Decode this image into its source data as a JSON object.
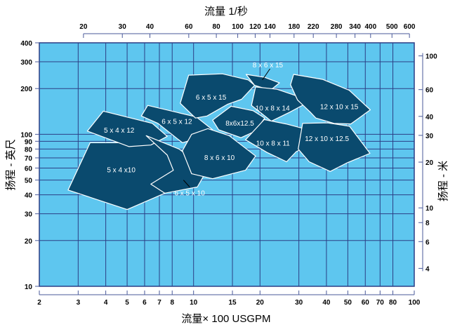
{
  "chart_data": {
    "type": "area",
    "title": "",
    "colors": {
      "plot_background": "#5ec6ef",
      "grid": "#2c3f86",
      "zone_fill": "#0a4a6e",
      "zone_stroke": "#ffffff",
      "axis": "#4a5a9a"
    },
    "x_axis": {
      "label": "流量× 100 USGPM",
      "scale": "log",
      "range": [
        2,
        100
      ],
      "ticks": [
        {
          "value": 2,
          "label": "2"
        },
        {
          "value": 3,
          "label": "3"
        },
        {
          "value": 4,
          "label": "4"
        },
        {
          "value": 5,
          "label": "5"
        },
        {
          "value": 6,
          "label": "6"
        },
        {
          "value": 7,
          "label": "7"
        },
        {
          "value": 8,
          "label": "8"
        },
        {
          "value": 10,
          "label": "10"
        },
        {
          "value": 15,
          "label": "15"
        },
        {
          "value": 20,
          "label": "20"
        },
        {
          "value": 30,
          "label": "30"
        },
        {
          "value": 40,
          "label": "40"
        },
        {
          "value": 50,
          "label": "50"
        },
        {
          "value": 60,
          "label": "60"
        },
        {
          "value": 70,
          "label": "70"
        },
        {
          "value": 80,
          "label": "80"
        },
        {
          "value": 100,
          "label": "100"
        }
      ]
    },
    "x2_axis": {
      "label": "流量 1/秒",
      "scale": "log",
      "ticks": [
        {
          "value": 20,
          "label": "20"
        },
        {
          "value": 30,
          "label": "30"
        },
        {
          "value": 40,
          "label": "40"
        },
        {
          "value": 60,
          "label": "60"
        },
        {
          "value": 80,
          "label": "80"
        },
        {
          "value": 100,
          "label": "100"
        },
        {
          "value": 120,
          "label": "120"
        },
        {
          "value": 140,
          "label": "140"
        },
        {
          "value": 180,
          "label": "180"
        },
        {
          "value": 220,
          "label": "220"
        },
        {
          "value": 280,
          "label": "280"
        },
        {
          "value": 340,
          "label": "340"
        },
        {
          "value": 400,
          "label": "400"
        },
        {
          "value": 500,
          "label": "500"
        },
        {
          "value": 600,
          "label": "600"
        }
      ]
    },
    "y_axis": {
      "label": "扬程 - 英尺",
      "scale": "log",
      "range": [
        10,
        400
      ],
      "ticks": [
        {
          "value": 10,
          "label": "10"
        },
        {
          "value": 20,
          "label": "20"
        },
        {
          "value": 30,
          "label": "30"
        },
        {
          "value": 40,
          "label": "40"
        },
        {
          "value": 50,
          "label": "50"
        },
        {
          "value": 60,
          "label": "60"
        },
        {
          "value": 70,
          "label": "70"
        },
        {
          "value": 80,
          "label": "80"
        },
        {
          "value": 90,
          "label": "90"
        },
        {
          "value": 100,
          "label": "100"
        },
        {
          "value": 200,
          "label": "200"
        },
        {
          "value": 300,
          "label": "300"
        },
        {
          "value": 400,
          "label": "400"
        }
      ]
    },
    "y2_axis": {
      "label": "扬程 - 米",
      "scale": "log",
      "ticks": [
        {
          "value": 4,
          "label": "4"
        },
        {
          "value": 6,
          "label": "6"
        },
        {
          "value": 8,
          "label": "8"
        },
        {
          "value": 10,
          "label": "10"
        },
        {
          "value": 20,
          "label": "20"
        },
        {
          "value": 30,
          "label": "30"
        },
        {
          "value": 40,
          "label": "40"
        },
        {
          "value": 60,
          "label": "60"
        },
        {
          "value": 100,
          "label": "100"
        }
      ]
    },
    "zones": [
      {
        "name": "5 x 4 x10",
        "polygon": [
          [
            3.4,
            88
          ],
          [
            6.8,
            88
          ],
          [
            9.5,
            55
          ],
          [
            8.6,
            45
          ],
          [
            5,
            32
          ],
          [
            2.7,
            43
          ]
        ],
        "label_at": [
          4.7,
          58
        ]
      },
      {
        "name": "5 x 4 x 12",
        "polygon": [
          [
            3.9,
            142
          ],
          [
            6.5,
            118
          ],
          [
            7.6,
            97
          ],
          [
            6.4,
            85
          ],
          [
            5.1,
            83
          ],
          [
            3.3,
            105
          ]
        ],
        "label_at": [
          4.6,
          106
        ]
      },
      {
        "name": "6 x 5 x 10",
        "polygon": [
          [
            6.1,
            98
          ],
          [
            8.6,
            80
          ],
          [
            11.5,
            58
          ],
          [
            10.4,
            45
          ],
          [
            7.4,
            41
          ],
          [
            6.4,
            47
          ],
          [
            8.1,
            58
          ],
          [
            7.6,
            73
          ]
        ],
        "label_at": [
          9.6,
          41
        ]
      },
      {
        "name": "6 x 5 x 12",
        "polygon": [
          [
            6.2,
            155
          ],
          [
            10.3,
            130
          ],
          [
            12.2,
            107
          ],
          [
            10.6,
            95
          ],
          [
            8.9,
            88
          ],
          [
            6.9,
            118
          ],
          [
            5.8,
            132
          ]
        ],
        "label_at": [
          8.4,
          121
        ]
      },
      {
        "name": "8 x 6 x 10",
        "polygon": [
          [
            11.6,
            109
          ],
          [
            14.5,
            98
          ],
          [
            19.1,
            72
          ],
          [
            17.2,
            58
          ],
          [
            12.2,
            51
          ],
          [
            9.8,
            55
          ],
          [
            8.9,
            78
          ],
          [
            9.8,
            100
          ]
        ],
        "label_at": [
          13.1,
          70
        ]
      },
      {
        "name": "6 x 5 x 15",
        "polygon": [
          [
            9.5,
            245
          ],
          [
            13.5,
            250
          ],
          [
            17.7,
            228
          ],
          [
            18.9,
            210
          ],
          [
            16.5,
            170
          ],
          [
            14.3,
            158
          ],
          [
            11.5,
            132
          ],
          [
            10.2,
            128
          ],
          [
            8.7,
            160
          ]
        ],
        "label_at": [
          12,
          175
        ]
      },
      {
        "name": "8x6x12.5",
        "polygon": [
          [
            14.8,
            153
          ],
          [
            18.6,
            143
          ],
          [
            21,
            128
          ],
          [
            19.1,
            105
          ],
          [
            16.4,
            95
          ],
          [
            13,
            107
          ],
          [
            12.2,
            124
          ]
        ],
        "label_at": [
          16.2,
          118
        ]
      },
      {
        "name": "8 x 6 x 15",
        "polygon": [
          [
            17.3,
            248
          ],
          [
            21,
            237
          ],
          [
            24.5,
            218
          ],
          [
            22.3,
            195
          ],
          [
            18.9,
            210
          ]
        ],
        "label_at": [
          21.7,
          285
        ]
      },
      {
        "name": "10 x 8 x 14",
        "polygon": [
          [
            19.1,
            205
          ],
          [
            23.8,
            198
          ],
          [
            28.9,
            180
          ],
          [
            31.9,
            158
          ],
          [
            27.3,
            140
          ],
          [
            22.5,
            122
          ],
          [
            18.3,
            155
          ]
        ],
        "label_at": [
          22.8,
          148
        ]
      },
      {
        "name": "10 x 8 x 11",
        "polygon": [
          [
            20.9,
            125
          ],
          [
            26.2,
            117
          ],
          [
            32.4,
            108
          ],
          [
            35.8,
            88
          ],
          [
            29.2,
            77
          ],
          [
            26.4,
            66
          ],
          [
            21.5,
            76
          ],
          [
            17.2,
            92
          ]
        ],
        "label_at": [
          22.9,
          87
        ]
      },
      {
        "name": "12 x 10 x 15",
        "polygon": [
          [
            28.4,
            248
          ],
          [
            38.4,
            230
          ],
          [
            50.7,
            195
          ],
          [
            63.2,
            145
          ],
          [
            51.6,
            117
          ],
          [
            43.3,
            118
          ],
          [
            35.8,
            128
          ],
          [
            33.8,
            140
          ],
          [
            29.6,
            168
          ],
          [
            27.5,
            212
          ]
        ],
        "label_at": [
          45.7,
          151
        ]
      },
      {
        "name": "12 x 10 x 12.5",
        "polygon": [
          [
            31.2,
            118
          ],
          [
            40.4,
            119
          ],
          [
            50.9,
            113
          ],
          [
            63,
            75
          ],
          [
            49.7,
            65
          ],
          [
            41.6,
            57
          ],
          [
            33.4,
            66
          ],
          [
            29.8,
            80
          ]
        ],
        "label_at": [
          40.2,
          93
        ]
      }
    ]
  }
}
